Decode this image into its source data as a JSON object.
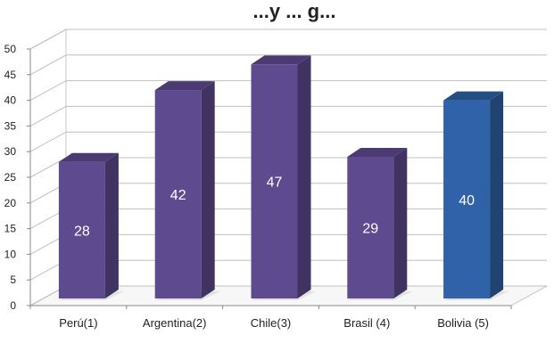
{
  "chart_data": {
    "type": "bar",
    "title": "...y ... g...",
    "xlabel": "",
    "ylabel": "",
    "categories": [
      "Perú(1)",
      "Argentina(2)",
      "Chile(3)",
      "Brasil (4)",
      "Bolivia (5)"
    ],
    "values": [
      28,
      42,
      47,
      29,
      40
    ],
    "data_labels": [
      "28",
      "42",
      "47",
      "29",
      "40"
    ],
    "ylim": [
      0,
      50
    ],
    "yticks": [
      0,
      5,
      10,
      15,
      20,
      25,
      30,
      35,
      40,
      45,
      50
    ],
    "grid": true,
    "style": "3d-column",
    "colors": {
      "default": "#5e4a8f",
      "highlight": "#2f62a8",
      "highlight_category": "Bolivia (5)"
    }
  }
}
